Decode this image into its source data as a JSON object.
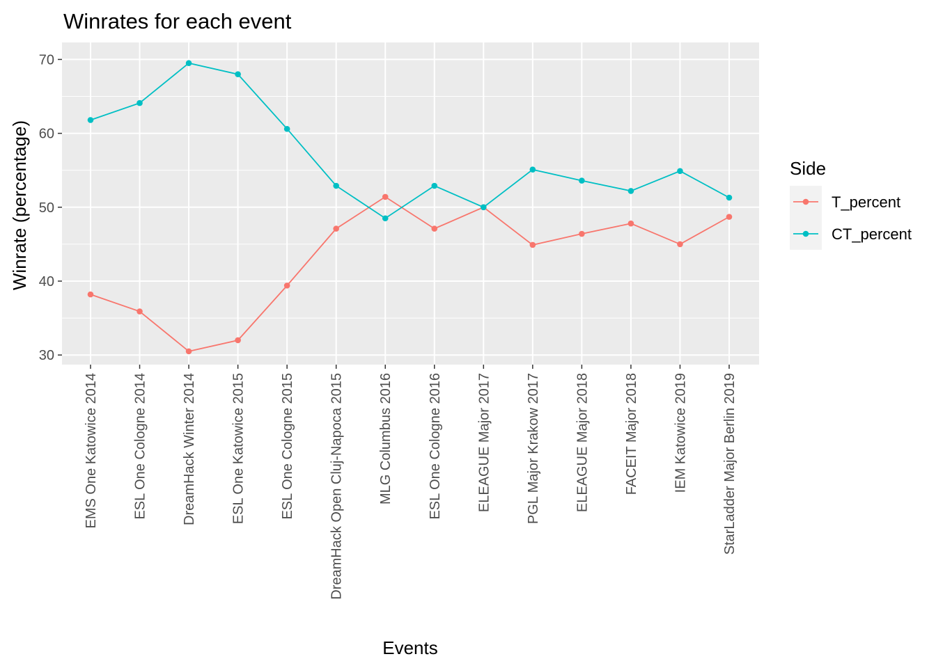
{
  "chart_data": {
    "type": "line",
    "title": "Winrates for each event",
    "xlabel": "Events",
    "ylabel": "Winrate (percentage)",
    "ylim": [
      28.7,
      72.3
    ],
    "yticks": [
      30,
      40,
      50,
      60,
      70
    ],
    "grid": true,
    "legend_position": "right",
    "legend_title": "Side",
    "categories": [
      "EMS One Katowice 2014",
      "ESL One Cologne 2014",
      "DreamHack Winter 2014",
      "ESL One Katowice 2015",
      "ESL One Cologne 2015",
      "DreamHack Open Cluj-Napoca 2015",
      "MLG Columbus 2016",
      "ESL One Cologne 2016",
      "ELEAGUE Major 2017",
      "PGL Major Krakow 2017",
      "ELEAGUE Major 2018",
      "FACEIT Major 2018",
      "IEM Katowice 2019",
      "StarLadder Major Berlin 2019"
    ],
    "series": [
      {
        "name": "T_percent",
        "color": "#F8766D",
        "values": [
          38.2,
          35.9,
          30.5,
          32.0,
          39.4,
          47.1,
          51.4,
          47.1,
          50.0,
          44.9,
          46.4,
          47.8,
          45.0,
          48.7
        ]
      },
      {
        "name": "CT_percent",
        "color": "#00BFC4",
        "values": [
          61.8,
          64.1,
          69.5,
          68.0,
          60.6,
          52.9,
          48.5,
          52.9,
          50.0,
          55.1,
          53.6,
          52.2,
          54.9,
          51.3
        ]
      }
    ]
  }
}
